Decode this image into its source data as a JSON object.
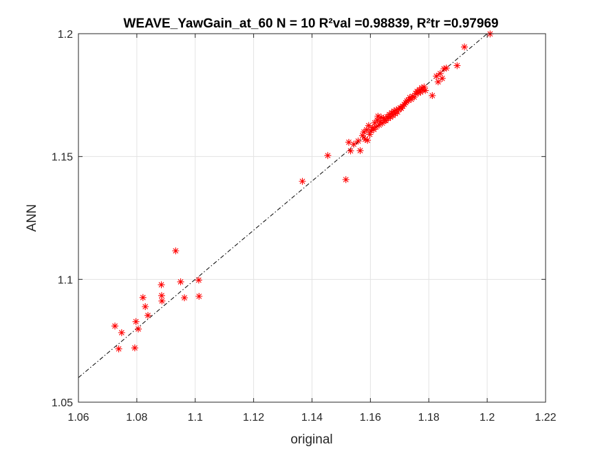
{
  "chart_data": {
    "type": "scatter",
    "title": "WEAVE_YawGain_at_60  N = 10 R²val =0.98839, R²tr =0.97969",
    "xlabel": "original",
    "ylabel": "ANN",
    "xlim": [
      1.06,
      1.22
    ],
    "ylim": [
      1.05,
      1.2
    ],
    "xticks": [
      1.06,
      1.08,
      1.1,
      1.12,
      1.14,
      1.16,
      1.18,
      1.2,
      1.22
    ],
    "yticks": [
      1.05,
      1.1,
      1.15,
      1.2
    ],
    "xtick_labels": [
      "1.06",
      "1.08",
      "1.1",
      "1.12",
      "1.14",
      "1.16",
      "1.18",
      "1.2",
      "1.22"
    ],
    "ytick_labels": [
      "1.05",
      "1.1",
      "1.15",
      "1.2"
    ],
    "grid": true,
    "marker": "asterisk",
    "marker_color": "#ff0000",
    "fit_line": {
      "style": "dash-dot",
      "color": "#000000",
      "x": [
        1.06,
        1.2
      ],
      "y": [
        1.06,
        1.2
      ]
    },
    "series": [
      {
        "points": [
          [
            1.0725,
            1.081
          ],
          [
            1.0738,
            1.0717
          ],
          [
            1.0748,
            1.0783
          ],
          [
            1.0793,
            1.0721
          ],
          [
            1.0797,
            1.0828
          ],
          [
            1.0805,
            1.0798
          ],
          [
            1.0821,
            1.0926
          ],
          [
            1.0829,
            1.0889
          ],
          [
            1.0838,
            1.0853
          ],
          [
            1.0884,
            1.0978
          ],
          [
            1.0885,
            1.0934
          ],
          [
            1.0886,
            1.0912
          ],
          [
            1.0933,
            1.1116
          ],
          [
            1.095,
            1.099
          ],
          [
            1.0963,
            1.0925
          ],
          [
            1.1012,
            1.0997
          ],
          [
            1.1013,
            1.0931
          ],
          [
            1.1367,
            1.1399
          ],
          [
            1.1454,
            1.1504
          ],
          [
            1.1516,
            1.1406
          ],
          [
            1.1526,
            1.1558
          ],
          [
            1.1532,
            1.1523
          ],
          [
            1.1543,
            1.155
          ],
          [
            1.1558,
            1.1563
          ],
          [
            1.1565,
            1.1524
          ],
          [
            1.1573,
            1.1585
          ],
          [
            1.1578,
            1.16
          ],
          [
            1.1582,
            1.157
          ],
          [
            1.1587,
            1.1609
          ],
          [
            1.159,
            1.1566
          ],
          [
            1.1594,
            1.1626
          ],
          [
            1.1598,
            1.159
          ],
          [
            1.1602,
            1.1605
          ],
          [
            1.1607,
            1.1617
          ],
          [
            1.1612,
            1.161
          ],
          [
            1.1615,
            1.1637
          ],
          [
            1.1619,
            1.162
          ],
          [
            1.1623,
            1.1648
          ],
          [
            1.1626,
            1.1664
          ],
          [
            1.163,
            1.1628
          ],
          [
            1.1634,
            1.1641
          ],
          [
            1.1637,
            1.166
          ],
          [
            1.1641,
            1.1636
          ],
          [
            1.1645,
            1.1655
          ],
          [
            1.1649,
            1.1647
          ],
          [
            1.1653,
            1.1646
          ],
          [
            1.1657,
            1.1662
          ],
          [
            1.1661,
            1.1655
          ],
          [
            1.1665,
            1.1671
          ],
          [
            1.1669,
            1.166
          ],
          [
            1.1673,
            1.1678
          ],
          [
            1.1677,
            1.1667
          ],
          [
            1.1681,
            1.1685
          ],
          [
            1.1685,
            1.1674
          ],
          [
            1.1689,
            1.169
          ],
          [
            1.1693,
            1.1681
          ],
          [
            1.1697,
            1.1693
          ],
          [
            1.1702,
            1.1698
          ],
          [
            1.1706,
            1.1696
          ],
          [
            1.1711,
            1.1705
          ],
          [
            1.1716,
            1.1712
          ],
          [
            1.1721,
            1.1719
          ],
          [
            1.1725,
            1.1726
          ],
          [
            1.173,
            1.1729
          ],
          [
            1.1735,
            1.174
          ],
          [
            1.174,
            1.1733
          ],
          [
            1.1745,
            1.1745
          ],
          [
            1.175,
            1.1742
          ],
          [
            1.1755,
            1.1757
          ],
          [
            1.176,
            1.1765
          ],
          [
            1.1764,
            1.1758
          ],
          [
            1.1768,
            1.1772
          ],
          [
            1.1772,
            1.1762
          ],
          [
            1.1776,
            1.178
          ],
          [
            1.178,
            1.177
          ],
          [
            1.1784,
            1.1783
          ],
          [
            1.1788,
            1.1769
          ],
          [
            1.1812,
            1.1748
          ],
          [
            1.1826,
            1.1827
          ],
          [
            1.1832,
            1.1804
          ],
          [
            1.1839,
            1.1838
          ],
          [
            1.1846,
            1.1818
          ],
          [
            1.1852,
            1.1857
          ],
          [
            1.186,
            1.186
          ],
          [
            1.1897,
            1.187
          ],
          [
            1.1922,
            1.1946
          ],
          [
            1.201,
            1.1999
          ]
        ]
      }
    ]
  }
}
